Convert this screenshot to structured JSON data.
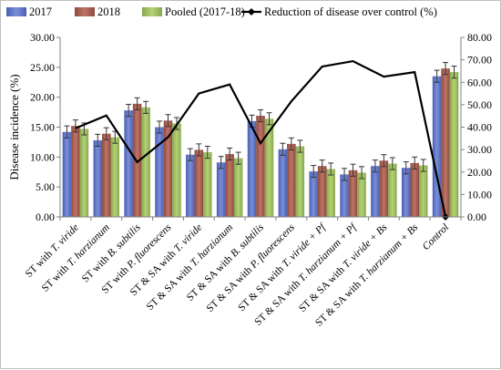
{
  "chart_data": {
    "type": "bar",
    "xlabel": "",
    "ylabel": "Disease incidence (%)",
    "y2label": "",
    "ylim": [
      0,
      30
    ],
    "y2lim": [
      0,
      80
    ],
    "yticks": [
      "0.00",
      "5.00",
      "10.00",
      "15.00",
      "20.00",
      "25.00",
      "30.00"
    ],
    "y2ticks": [
      "0.00",
      "10.00",
      "20.00",
      "30.00",
      "40.00",
      "50.00",
      "60.00",
      "70.00",
      "80.00"
    ],
    "grid": false,
    "legend_position": "top",
    "categories": [
      {
        "prefix": "ST with ",
        "italic": "T. viride",
        "suffix": ""
      },
      {
        "prefix": "ST with ",
        "italic": "T. harzianum",
        "suffix": ""
      },
      {
        "prefix": "ST with ",
        "italic": "B. subtilis",
        "suffix": ""
      },
      {
        "prefix": "ST with ",
        "italic": "P. fluorescens",
        "suffix": ""
      },
      {
        "prefix": "ST & SA with ",
        "italic": "T. viride",
        "suffix": ""
      },
      {
        "prefix": "ST & SA with ",
        "italic": "T. harzianum",
        "suffix": ""
      },
      {
        "prefix": "ST & SA with ",
        "italic": "B. subtilis",
        "suffix": ""
      },
      {
        "prefix": "ST & SA with ",
        "italic": "P. fluorescens",
        "suffix": ""
      },
      {
        "prefix": "ST & SA with ",
        "italic": "T. viride + Pf",
        "suffix": ""
      },
      {
        "prefix": "ST & SA with ",
        "italic": "T. harzianum + Pf",
        "suffix": ""
      },
      {
        "prefix": "ST & SA with ",
        "italic": "T. viride + Bs",
        "suffix": ""
      },
      {
        "prefix": "ST & SA with ",
        "italic": "T. harzianum + Bs",
        "suffix": ""
      },
      {
        "prefix": "",
        "italic": "Control",
        "suffix": ""
      }
    ],
    "series": [
      {
        "name": "2017",
        "type": "bar",
        "axis": "left",
        "color": "#5b70c2",
        "values": [
          14.2,
          12.8,
          17.8,
          15.0,
          10.4,
          9.1,
          16.0,
          11.3,
          7.6,
          7.1,
          8.5,
          8.2,
          23.5
        ],
        "errors": [
          1.0,
          1.0,
          1.0,
          1.0,
          1.0,
          1.0,
          1.0,
          1.0,
          1.0,
          1.0,
          1.0,
          1.0,
          1.0
        ]
      },
      {
        "name": "2018",
        "type": "bar",
        "axis": "left",
        "color": "#a0574a",
        "values": [
          15.2,
          13.9,
          18.9,
          16.1,
          11.2,
          10.5,
          16.9,
          12.2,
          8.5,
          7.8,
          9.4,
          9.0,
          24.8
        ],
        "errors": [
          1.0,
          1.0,
          1.0,
          1.0,
          1.0,
          1.0,
          1.0,
          1.0,
          1.0,
          1.0,
          1.0,
          1.0,
          1.0
        ]
      },
      {
        "name": "Pooled (2017-18)",
        "type": "bar",
        "axis": "left",
        "color": "#9bbb59",
        "values": [
          14.7,
          13.3,
          18.3,
          15.6,
          10.8,
          9.8,
          16.4,
          11.8,
          8.0,
          7.4,
          8.9,
          8.6,
          24.2
        ],
        "errors": [
          1.0,
          1.0,
          1.0,
          1.0,
          1.0,
          1.0,
          1.0,
          1.0,
          1.0,
          1.0,
          1.0,
          1.0,
          1.0
        ]
      },
      {
        "name": "Reduction of disease over control (%)",
        "type": "line",
        "axis": "right",
        "color": "#000000",
        "values": [
          39.5,
          45.2,
          24.4,
          35.5,
          55.0,
          59.0,
          32.8,
          51.5,
          67.0,
          69.4,
          62.5,
          64.5,
          0.0
        ]
      }
    ]
  }
}
